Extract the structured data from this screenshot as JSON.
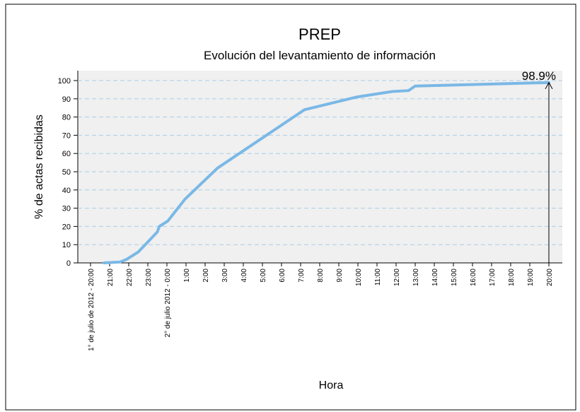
{
  "chart_data": {
    "type": "line",
    "title": "PREP",
    "subtitle": "Evolución del levantamiento de información",
    "ylabel": "% de actas recibidas",
    "xlabel": "Hora",
    "xlim": [
      0,
      24
    ],
    "ylim": [
      0,
      100
    ],
    "yticks": [
      0,
      10,
      20,
      30,
      40,
      50,
      60,
      70,
      80,
      90,
      100
    ],
    "xticks": [
      {
        "value": 0,
        "label": "1° de julio de 2012 - 20:00"
      },
      {
        "value": 1,
        "label": "21:00"
      },
      {
        "value": 2,
        "label": "22:00"
      },
      {
        "value": 3,
        "label": "23:00"
      },
      {
        "value": 4,
        "label": "2° de julio 2012 - 0:00"
      },
      {
        "value": 5,
        "label": "1:00"
      },
      {
        "value": 6,
        "label": "2:00"
      },
      {
        "value": 7,
        "label": "3:00"
      },
      {
        "value": 8,
        "label": "4:00"
      },
      {
        "value": 9,
        "label": "5:00"
      },
      {
        "value": 10,
        "label": "6:00"
      },
      {
        "value": 11,
        "label": "7:00"
      },
      {
        "value": 12,
        "label": "8:00"
      },
      {
        "value": 13,
        "label": "9:00"
      },
      {
        "value": 14,
        "label": "10:00"
      },
      {
        "value": 15,
        "label": "11:00"
      },
      {
        "value": 16,
        "label": "12:00"
      },
      {
        "value": 17,
        "label": "13:00"
      },
      {
        "value": 18,
        "label": "14:00"
      },
      {
        "value": 19,
        "label": "15:00"
      },
      {
        "value": 20,
        "label": "16:00"
      },
      {
        "value": 21,
        "label": "17:00"
      },
      {
        "value": 22,
        "label": "18:00"
      },
      {
        "value": 23,
        "label": "19:00"
      },
      {
        "value": 24,
        "label": "20:00"
      }
    ],
    "grid": true,
    "series": [
      {
        "color": "#7ab8e6",
        "x": [
          0.7,
          1.55,
          1.9,
          2.5,
          3.05,
          3.5,
          3.6,
          4.05,
          4.95,
          6.65,
          11.2,
          13.95,
          15.8,
          16.65,
          17,
          24
        ],
        "values": [
          0,
          0.5,
          2,
          6,
          12,
          17,
          20,
          23,
          35,
          52,
          84,
          91,
          94,
          94.5,
          97,
          98.9
        ]
      }
    ],
    "annotation": {
      "label": "98.9%",
      "x": 24,
      "value": 98.9
    }
  }
}
